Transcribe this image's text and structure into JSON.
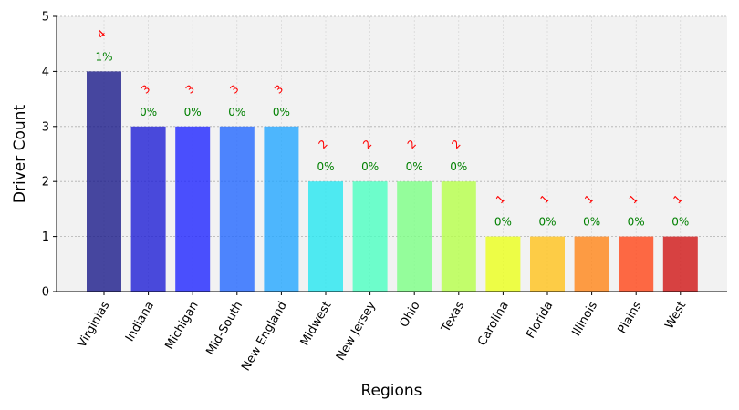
{
  "chart_data": {
    "type": "bar",
    "title": "",
    "xlabel": "Regions",
    "ylabel": "Driver Count",
    "ylim": [
      0,
      5
    ],
    "yticks": [
      0,
      1,
      2,
      3,
      4,
      5
    ],
    "grid": true,
    "categories": [
      "Virginias",
      "Indiana",
      "Michigan",
      "Mid-South",
      "New England",
      "Midwest",
      "New Jersey",
      "Ohio",
      "Texas",
      "Carolina",
      "Florida",
      "Illinois",
      "Plains",
      "West"
    ],
    "values": [
      4,
      3,
      3,
      3,
      3,
      2,
      2,
      2,
      2,
      1,
      1,
      1,
      1,
      1
    ],
    "value_labels": [
      "4",
      "3",
      "3",
      "3",
      "3",
      "2",
      "2",
      "2",
      "2",
      "1",
      "1",
      "1",
      "1",
      "1"
    ],
    "percent_labels": [
      "1%",
      "0%",
      "0%",
      "0%",
      "0%",
      "0%",
      "0%",
      "0%",
      "0%",
      "0%",
      "0%",
      "0%",
      "0%",
      "0%"
    ],
    "bar_colors": [
      "#1a1a8a",
      "#1e1ed4",
      "#1f26ff",
      "#2368ff",
      "#23a6ff",
      "#24e6f0",
      "#4bffc0",
      "#7cff84",
      "#b5ff48",
      "#ebff1a",
      "#ffc21a",
      "#ff8416",
      "#ff4516",
      "#d01414"
    ],
    "value_label_color": "#ff0000",
    "percent_label_color": "#008000",
    "plot_background": "#f2f2f2"
  }
}
